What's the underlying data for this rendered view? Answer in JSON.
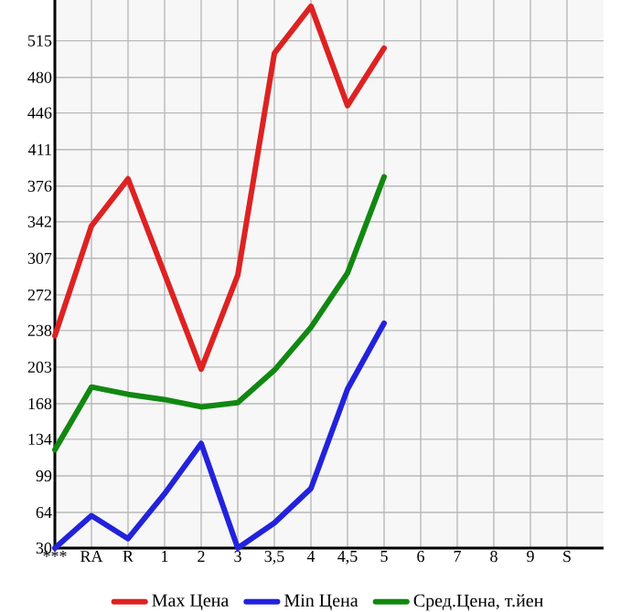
{
  "chart_data": {
    "type": "line",
    "categories": [
      "***",
      "RA",
      "R",
      "1",
      "2",
      "3",
      "3,5",
      "4",
      "4,5",
      "5",
      "6",
      "7",
      "8",
      "9",
      "S"
    ],
    "series": [
      {
        "name": "Max Цена",
        "color": "#dd2222",
        "values": [
          233,
          338,
          383,
          292,
          201,
          291,
          503,
          548,
          453,
          508,
          null,
          null,
          null,
          null,
          null
        ]
      },
      {
        "name": "Min Цена",
        "color": "#2222dd",
        "values": [
          30,
          61,
          39,
          82,
          130,
          30,
          54,
          87,
          182,
          245,
          null,
          null,
          null,
          null,
          null
        ]
      },
      {
        "name": "Сред.Цена, т.йен",
        "color": "#118811",
        "values": [
          124,
          184,
          177,
          172,
          165,
          169,
          200,
          241,
          293,
          385,
          null,
          null,
          null,
          null,
          null
        ]
      }
    ],
    "ylim": [
      30,
      554
    ],
    "yticks": [
      30,
      64,
      99,
      134,
      168,
      203,
      238,
      272,
      307,
      342,
      376,
      411,
      446,
      480,
      515
    ],
    "grid": true,
    "legend": "bottom",
    "marker": "none",
    "line_style": "solid"
  }
}
